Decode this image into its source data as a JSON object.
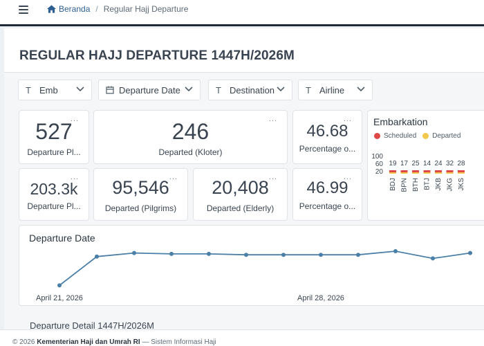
{
  "breadcrumb": {
    "home": "Beranda",
    "current": "Regular Hajj Departure"
  },
  "page": {
    "title": "REGULAR HAJJ DEPARTURE 1447H/2026M"
  },
  "filters": [
    {
      "icon": "T",
      "label": "Emb"
    },
    {
      "icon": "calendar",
      "label": "Departure Date"
    },
    {
      "icon": "T",
      "label": "Destination"
    },
    {
      "icon": "T",
      "label": "Airline"
    }
  ],
  "kpis": {
    "departure_plan_kloter": {
      "value": "527",
      "label": "Departure Pl..."
    },
    "departed_kloter": {
      "value": "246",
      "label": "Departed (Kloter)"
    },
    "percentage_kloter": {
      "value": "46.68",
      "label": "Percentage o..."
    },
    "departure_plan_pilgrims": {
      "value": "203.3k",
      "label": "Departure Pl..."
    },
    "departed_pilgrims": {
      "value": "95,546",
      "label": "Departed (Pilgrims)"
    },
    "departed_elderly": {
      "value": "20,408",
      "label": "Departed (Elderly)"
    },
    "percentage_pilgrims": {
      "value": "46.99",
      "label": "Percentage o..."
    }
  },
  "kebab": "...",
  "embarkation": {
    "title": "Embarkation",
    "legend": [
      {
        "name": "Scheduled",
        "color": "#e04848"
      },
      {
        "name": "Departed",
        "color": "#f2c94c"
      }
    ],
    "y_ticks": [
      "100",
      "60",
      "20"
    ],
    "bars": [
      {
        "code": "BDJ",
        "value": "19"
      },
      {
        "code": "BPN",
        "value": "17"
      },
      {
        "code": "BTH",
        "value": "25"
      },
      {
        "code": "BTJ",
        "value": "14"
      },
      {
        "code": "JKB",
        "value": "24"
      },
      {
        "code": "JKG",
        "value": "32"
      },
      {
        "code": "JKS",
        "value": "28"
      }
    ]
  },
  "departure_date": {
    "title": "Departure Date",
    "x_labels": [
      "April 21, 2026",
      "April 28, 2026"
    ],
    "line_color": "#4a7fa8"
  },
  "chart_data": {
    "type": "line",
    "title": "Departure Date",
    "x": [
      "2026-04-21",
      "2026-04-22",
      "2026-04-23",
      "2026-04-24",
      "2026-04-25",
      "2026-04-26",
      "2026-04-27",
      "2026-04-28",
      "2026-04-29",
      "2026-04-30",
      "2026-05-01",
      "2026-05-02"
    ],
    "series": [
      {
        "values": [
          6,
          22,
          24,
          23.5,
          23.5,
          23,
          23,
          23,
          23,
          25,
          21,
          24
        ]
      }
    ],
    "x_tick_labels": [
      "April 21, 2026",
      "April 28, 2026"
    ]
  },
  "detail": {
    "title": "Departure Detail 1447H/2026M"
  },
  "footer": {
    "prefix": "© 2026",
    "org": "Kementerian Haji dan Umrah RI",
    "suffix": "— Sistem Informasi Haji"
  }
}
